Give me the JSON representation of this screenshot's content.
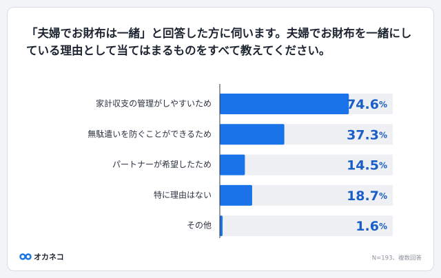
{
  "chart_data": {
    "type": "barh",
    "title": "「夫婦でお財布は一緒」と回答した方に伺います。夫婦でお財布を一緒にしている理由として当てはまるものをすべて教えてください。",
    "categories": [
      "家計収支の管理がしやすいため",
      "無駄遣いを防ぐことができるため",
      "パートナーが希望したため",
      "特に理由はない",
      "その他"
    ],
    "values": [
      74.6,
      37.3,
      14.5,
      18.7,
      1.6
    ],
    "value_labels": [
      "74.6%",
      "37.3%",
      "14.5%",
      "18.7%",
      "1.6%"
    ],
    "color": "#1a73e8",
    "xlim": [
      0,
      100
    ],
    "note": "N=193、複数回答"
  },
  "brand": "オカネコ"
}
